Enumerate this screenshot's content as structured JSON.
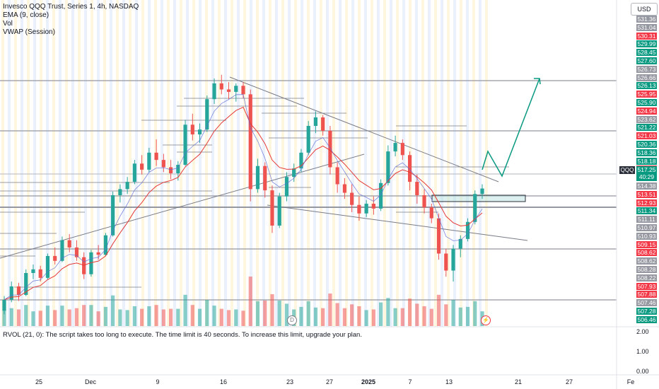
{
  "legend": {
    "title": "Invesco QQQ Trust, Series 1, 4h, NASDAQ",
    "ema": "EMA (9, close)",
    "vol": "Vol",
    "vwap": "VWAP (Session)"
  },
  "currency_button": "USD",
  "symbol_tag": "QQQ",
  "last_price": "517.25",
  "countdown": "40:29",
  "price_labels": [
    {
      "text": "531.36",
      "color": "#9598a1"
    },
    {
      "text": "531.04",
      "color": "#9598a1"
    },
    {
      "text": "530.31",
      "color": "#f23645"
    },
    {
      "text": "529.99",
      "color": "#089981"
    },
    {
      "text": "528.45",
      "color": "#089981"
    },
    {
      "text": "527.60",
      "color": "#089981"
    },
    {
      "text": "526.73",
      "color": "#9598a1"
    },
    {
      "text": "526.66",
      "color": "#9598a1"
    },
    {
      "text": "526.13",
      "color": "#089981"
    },
    {
      "text": "525.95",
      "color": "#f23645"
    },
    {
      "text": "525.90",
      "color": "#089981"
    },
    {
      "text": "524.94",
      "color": "#f23645"
    },
    {
      "text": "523.62",
      "color": "#9598a1"
    },
    {
      "text": "521.22",
      "color": "#089981"
    },
    {
      "text": "521.03",
      "color": "#f23645"
    },
    {
      "text": "520.36",
      "color": "#089981"
    },
    {
      "text": "518.36",
      "color": "#089981"
    },
    {
      "text": "518.18",
      "color": "#089981"
    },
    {
      "text": "517.53",
      "color": "#f23645"
    },
    {
      "text": "516.32",
      "color": "#089981"
    },
    {
      "text": "514.38",
      "color": "#9598a1"
    },
    {
      "text": "513.51",
      "color": "#f23645"
    },
    {
      "text": "512.93",
      "color": "#f23645"
    },
    {
      "text": "511.34",
      "color": "#089981"
    },
    {
      "text": "511.11",
      "color": "#9598a1"
    },
    {
      "text": "510.97",
      "color": "#9598a1"
    },
    {
      "text": "510.93",
      "color": "#9598a1"
    },
    {
      "text": "509.15",
      "color": "#f23645"
    },
    {
      "text": "508.62",
      "color": "#f23645"
    },
    {
      "text": "508.62",
      "color": "#9598a1"
    },
    {
      "text": "508.28",
      "color": "#9598a1"
    },
    {
      "text": "508.22",
      "color": "#9598a1"
    },
    {
      "text": "507.93",
      "color": "#f23645"
    },
    {
      "text": "507.88",
      "color": "#f23645"
    },
    {
      "text": "507.46",
      "color": "#9598a1"
    },
    {
      "text": "507.28",
      "color": "#089981"
    },
    {
      "text": "506.46",
      "color": "#089981"
    }
  ],
  "rvol_message": "RVOL (21, 0): The script takes too long to execute. The time limit is 40 seconds. To increase this limit, upgrade your plan.",
  "rvol_scale": [
    "2.00",
    "1.00",
    "0.00"
  ],
  "time_axis": [
    {
      "label": "25",
      "bold": false
    },
    {
      "label": "Dec",
      "bold": false
    },
    {
      "label": "9",
      "bold": false
    },
    {
      "label": "16",
      "bold": false
    },
    {
      "label": "23",
      "bold": false
    },
    {
      "label": "27",
      "bold": false
    },
    {
      "label": "2025",
      "bold": true
    },
    {
      "label": "7",
      "bold": false
    },
    {
      "label": "13",
      "bold": false
    },
    {
      "label": "21",
      "bold": false
    },
    {
      "label": "27",
      "bold": false
    },
    {
      "label": "Fe",
      "bold": false
    }
  ],
  "badges": {
    "dividend": "D",
    "event": "⚡"
  },
  "colors": {
    "up": "#26a69a",
    "down": "#ef5350",
    "ema": "#e53935",
    "vwap": "#5b6bd6",
    "projection": "#089981",
    "session": "#fff3d6",
    "session_alt": "#e3ecfb"
  },
  "chart_data": {
    "type": "candlestick",
    "symbol": "QQQ",
    "interval": "4h",
    "ylim": [
      506,
      532
    ],
    "x_ticks": [
      "25",
      "Dec",
      "9",
      "16",
      "23",
      "27",
      "2025",
      "7",
      "13",
      "21",
      "27",
      "Fe"
    ],
    "candles_ohlc": [
      [
        507.2,
        508.4,
        506.9,
        508.1
      ],
      [
        508.1,
        509.6,
        507.9,
        509.2
      ],
      [
        509.2,
        509.5,
        508.0,
        508.5
      ],
      [
        508.5,
        510.6,
        508.4,
        510.3
      ],
      [
        510.3,
        511.0,
        509.8,
        510.6
      ],
      [
        510.6,
        510.9,
        509.6,
        509.9
      ],
      [
        509.9,
        511.9,
        509.8,
        511.7
      ],
      [
        511.7,
        512.4,
        511.0,
        511.3
      ],
      [
        511.3,
        513.3,
        511.2,
        513.0
      ],
      [
        513.0,
        513.5,
        512.0,
        512.4
      ],
      [
        512.4,
        513.0,
        511.3,
        511.6
      ],
      [
        511.6,
        512.0,
        509.8,
        510.2
      ],
      [
        510.2,
        512.2,
        510.0,
        512.0
      ],
      [
        512.0,
        512.6,
        511.4,
        511.8
      ],
      [
        511.8,
        513.6,
        511.7,
        513.4
      ],
      [
        513.4,
        517.0,
        513.3,
        516.7
      ],
      [
        516.7,
        517.6,
        516.1,
        517.2
      ],
      [
        517.2,
        518.2,
        516.8,
        517.8
      ],
      [
        517.8,
        519.6,
        517.6,
        519.3
      ],
      [
        519.3,
        520.0,
        518.4,
        518.8
      ],
      [
        518.8,
        520.6,
        518.6,
        520.2
      ],
      [
        520.2,
        521.3,
        519.1,
        519.6
      ],
      [
        519.6,
        520.1,
        518.6,
        519.0
      ],
      [
        519.0,
        519.6,
        518.0,
        518.5
      ],
      [
        518.5,
        519.5,
        517.9,
        519.2
      ],
      [
        519.2,
        522.9,
        519.1,
        522.5
      ],
      [
        522.5,
        523.4,
        521.2,
        521.7
      ],
      [
        521.7,
        522.6,
        521.0,
        522.1
      ],
      [
        522.1,
        524.9,
        521.9,
        524.6
      ],
      [
        524.6,
        526.3,
        524.2,
        525.9
      ],
      [
        525.9,
        526.6,
        525.0,
        525.4
      ],
      [
        525.4,
        526.0,
        524.6,
        525.2
      ],
      [
        525.2,
        525.9,
        524.4,
        525.7
      ],
      [
        525.7,
        526.0,
        524.7,
        525.0
      ],
      [
        525.0,
        525.4,
        516.2,
        517.2
      ],
      [
        517.2,
        519.7,
        516.9,
        519.1
      ],
      [
        519.1,
        519.4,
        516.5,
        517.1
      ],
      [
        517.1,
        517.5,
        513.6,
        514.2
      ],
      [
        514.2,
        516.9,
        514.0,
        516.6
      ],
      [
        516.6,
        518.6,
        516.2,
        518.2
      ],
      [
        518.2,
        519.3,
        517.8,
        518.9
      ],
      [
        518.9,
        520.5,
        518.6,
        520.2
      ],
      [
        520.2,
        522.8,
        520.0,
        522.4
      ],
      [
        522.4,
        523.6,
        521.8,
        523.1
      ],
      [
        523.1,
        523.3,
        521.6,
        522.0
      ],
      [
        522.0,
        522.4,
        518.4,
        519.0
      ],
      [
        519.0,
        519.4,
        516.9,
        517.6
      ],
      [
        517.6,
        518.1,
        516.4,
        516.9
      ],
      [
        516.9,
        517.6,
        515.3,
        515.9
      ],
      [
        515.9,
        516.6,
        514.6,
        515.2
      ],
      [
        515.2,
        516.3,
        514.9,
        516.0
      ],
      [
        516.0,
        516.6,
        515.1,
        515.6
      ],
      [
        515.6,
        518.0,
        515.4,
        517.7
      ],
      [
        517.7,
        520.8,
        517.5,
        520.3
      ],
      [
        520.3,
        521.6,
        519.9,
        521.0
      ],
      [
        521.0,
        521.3,
        519.6,
        520.0
      ],
      [
        520.0,
        520.3,
        517.1,
        517.8
      ],
      [
        517.8,
        518.4,
        516.0,
        516.7
      ],
      [
        516.7,
        517.2,
        515.2,
        515.7
      ],
      [
        515.7,
        516.0,
        514.4,
        514.8
      ],
      [
        514.8,
        515.2,
        511.4,
        511.9
      ],
      [
        511.9,
        512.3,
        510.0,
        510.5
      ],
      [
        510.5,
        512.6,
        509.6,
        512.3
      ],
      [
        512.3,
        513.4,
        511.6,
        513.1
      ],
      [
        513.1,
        514.8,
        512.9,
        514.5
      ],
      [
        514.5,
        517.1,
        514.3,
        516.8
      ],
      [
        516.8,
        517.6,
        516.4,
        517.25
      ]
    ],
    "price_levels": [
      531.36,
      531.04,
      530.31,
      529.99,
      528.45,
      527.6,
      526.73,
      526.66,
      526.13,
      525.95,
      525.9,
      524.94,
      523.62,
      521.22,
      521.03,
      520.36,
      518.36,
      518.18,
      517.53,
      517.25,
      516.32,
      514.38,
      513.51,
      512.93,
      511.34,
      511.11,
      510.97,
      510.93,
      509.15,
      508.62,
      508.28,
      508.22,
      507.93,
      507.88,
      507.46,
      507.28,
      506.46
    ],
    "last_price": 517.25,
    "rvol_ylim": [
      0,
      2
    ]
  }
}
